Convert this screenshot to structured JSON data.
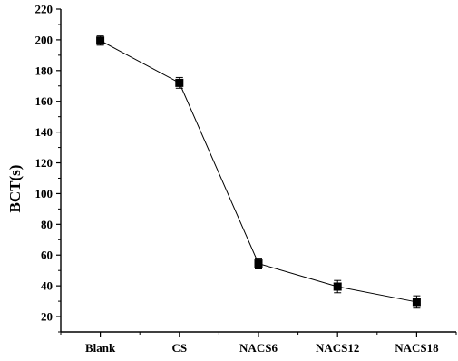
{
  "chart_data": {
    "type": "line",
    "title": "",
    "xlabel": "",
    "ylabel": "BCT(s)",
    "categories": [
      "Blank",
      "CS",
      "NACS6",
      "NACS12",
      "NACS18"
    ],
    "series": [
      {
        "values": [
          199.5,
          172,
          54.5,
          39.5,
          29.5
        ],
        "errors": [
          3,
          3.5,
          3.5,
          4,
          4
        ],
        "marker": "square",
        "color": "#000000"
      }
    ],
    "ylim": [
      10,
      220
    ],
    "yticks": [
      20,
      40,
      60,
      80,
      100,
      120,
      140,
      160,
      180,
      200,
      220
    ],
    "grid": false,
    "legend": "none"
  }
}
